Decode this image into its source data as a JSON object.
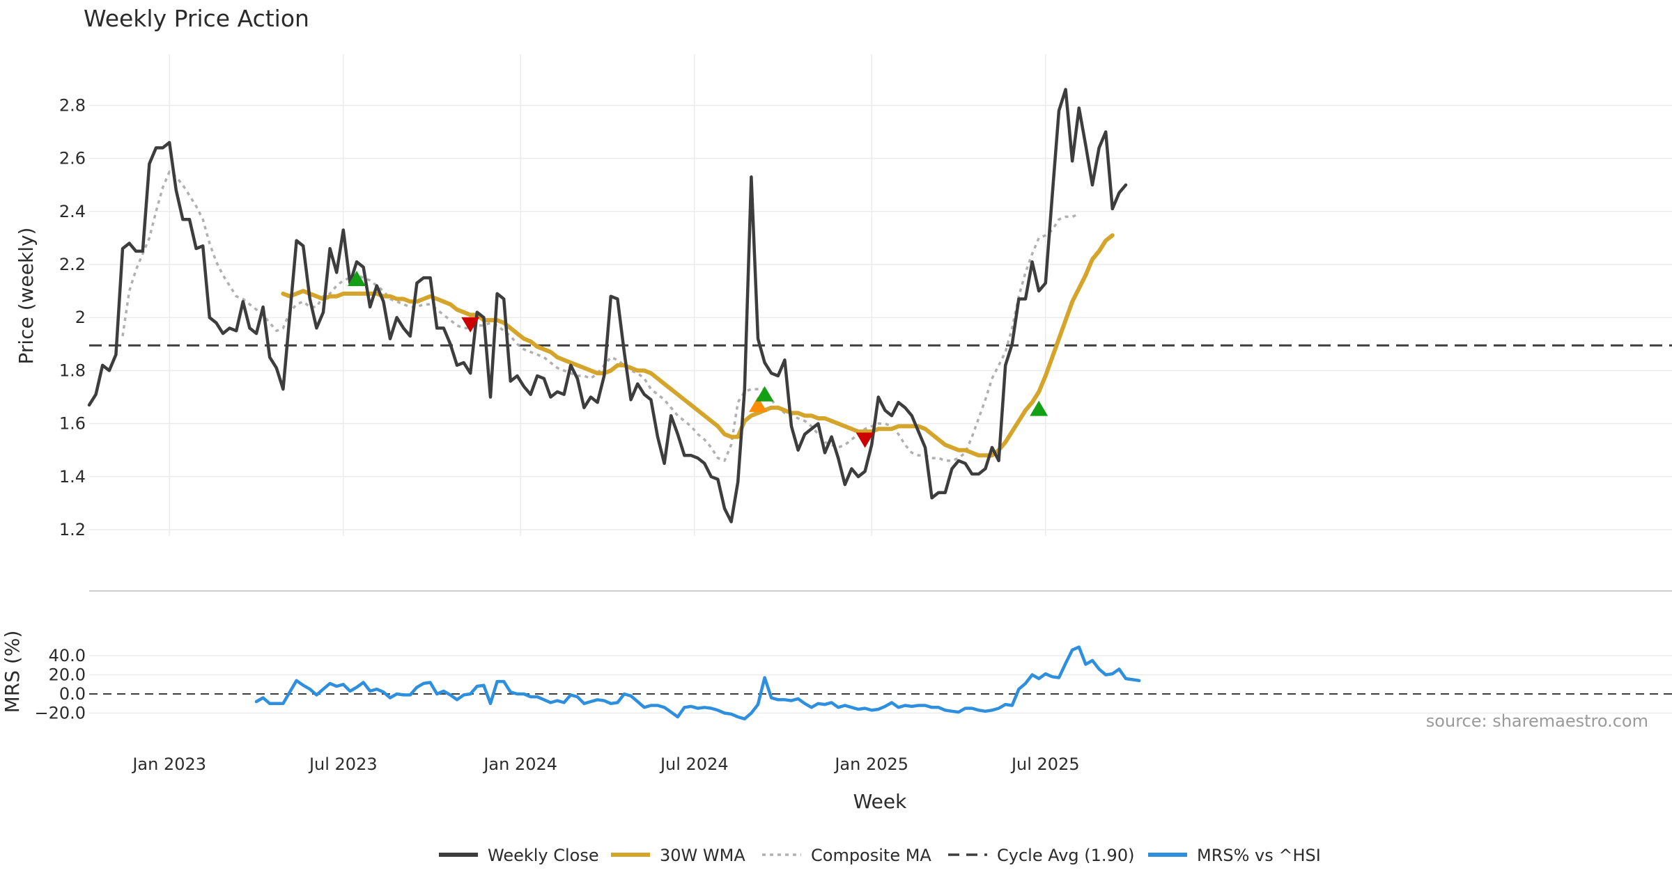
{
  "chart_data": [
    {
      "type": "line",
      "title": "Weekly Price Action",
      "xlabel": "",
      "ylabel": "Price (weekly)",
      "ylim": [
        1.15,
        2.97
      ],
      "yticks": [
        1.2,
        1.4,
        1.6,
        1.8,
        2,
        2.2,
        2.4,
        2.6,
        2.8
      ],
      "ytick_labels": [
        "1.2",
        "1.4",
        "1.6",
        "1.8",
        "2",
        "2.2",
        "2.4",
        "2.6",
        "2.8"
      ],
      "grid": true,
      "x_start": "2022-10-10",
      "x_step_weeks": 1,
      "cycle_avg": 1.895,
      "series": [
        {
          "name": "Weekly Close",
          "color": "#3d3d3d",
          "start_index": 0,
          "values": [
            1.67,
            1.71,
            1.82,
            1.8,
            1.86,
            2.26,
            2.28,
            2.25,
            2.25,
            2.58,
            2.64,
            2.64,
            2.66,
            2.48,
            2.37,
            2.37,
            2.26,
            2.27,
            2.0,
            1.98,
            1.94,
            1.96,
            1.95,
            2.06,
            1.96,
            1.94,
            2.04,
            1.85,
            1.81,
            1.73,
            2.01,
            2.29,
            2.27,
            2.07,
            1.96,
            2.02,
            2.26,
            2.17,
            2.33,
            2.13,
            2.21,
            2.19,
            2.04,
            2.12,
            2.06,
            1.92,
            2.0,
            1.96,
            1.93,
            2.13,
            2.15,
            2.15,
            1.96,
            1.96,
            1.9,
            1.82,
            1.83,
            1.79,
            2.02,
            2.0,
            1.7,
            2.09,
            2.07,
            1.76,
            1.78,
            1.74,
            1.71,
            1.78,
            1.77,
            1.7,
            1.72,
            1.71,
            1.82,
            1.77,
            1.66,
            1.7,
            1.68,
            1.78,
            2.08,
            2.07,
            1.87,
            1.69,
            1.75,
            1.71,
            1.69,
            1.55,
            1.45,
            1.63,
            1.56,
            1.48,
            1.48,
            1.47,
            1.45,
            1.4,
            1.39,
            1.28,
            1.23,
            1.38,
            1.73,
            2.53,
            1.92,
            1.83,
            1.79,
            1.78,
            1.84,
            1.59,
            1.5,
            1.56,
            1.58,
            1.6,
            1.49,
            1.55,
            1.47,
            1.37,
            1.43,
            1.4,
            1.42,
            1.52,
            1.7,
            1.65,
            1.63,
            1.68,
            1.66,
            1.63,
            1.57,
            1.51,
            1.32,
            1.34,
            1.34,
            1.43,
            1.46,
            1.45,
            1.41,
            1.41,
            1.43,
            1.51,
            1.46,
            1.82,
            1.9,
            2.07,
            2.07,
            2.21,
            2.1,
            2.13,
            2.46,
            2.78,
            2.86,
            2.59,
            2.79,
            2.65,
            2.5,
            2.64,
            2.7,
            2.41,
            2.47,
            2.5
          ]
        },
        {
          "name": "30W WMA",
          "color": "#d4a52a",
          "start_index": 29,
          "values": [
            2.09,
            2.08,
            2.09,
            2.1,
            2.09,
            2.08,
            2.07,
            2.08,
            2.08,
            2.09,
            2.09,
            2.09,
            2.09,
            2.09,
            2.09,
            2.08,
            2.08,
            2.07,
            2.07,
            2.06,
            2.06,
            2.07,
            2.08,
            2.07,
            2.06,
            2.05,
            2.03,
            2.02,
            2.01,
            2.01,
            1.99,
            1.99,
            1.99,
            1.98,
            1.96,
            1.94,
            1.92,
            1.91,
            1.89,
            1.88,
            1.87,
            1.85,
            1.84,
            1.83,
            1.82,
            1.81,
            1.8,
            1.79,
            1.79,
            1.8,
            1.82,
            1.82,
            1.81,
            1.8,
            1.8,
            1.79,
            1.77,
            1.75,
            1.73,
            1.71,
            1.69,
            1.67,
            1.65,
            1.63,
            1.61,
            1.59,
            1.56,
            1.55,
            1.55,
            1.61,
            1.63,
            1.64,
            1.65,
            1.66,
            1.66,
            1.65,
            1.64,
            1.64,
            1.63,
            1.63,
            1.62,
            1.62,
            1.61,
            1.6,
            1.59,
            1.58,
            1.57,
            1.57,
            1.57,
            1.58,
            1.58,
            1.58,
            1.59,
            1.59,
            1.59,
            1.59,
            1.58,
            1.56,
            1.54,
            1.52,
            1.51,
            1.5,
            1.5,
            1.49,
            1.48,
            1.48,
            1.48,
            1.5,
            1.53,
            1.57,
            1.61,
            1.65,
            1.68,
            1.72,
            1.78,
            1.85,
            1.92,
            1.99,
            2.06,
            2.11,
            2.16,
            2.22,
            2.25,
            2.29,
            2.31
          ]
        },
        {
          "name": "Composite MA",
          "color": "#b0b0b0",
          "start_index": 5,
          "values": [
            1.93,
            2.1,
            2.18,
            2.24,
            2.3,
            2.4,
            2.49,
            2.55,
            2.53,
            2.5,
            2.46,
            2.42,
            2.37,
            2.28,
            2.21,
            2.16,
            2.12,
            2.08,
            2.07,
            2.05,
            2.03,
            2.01,
            1.98,
            1.95,
            1.96,
            2.02,
            2.05,
            2.06,
            2.04,
            2.04,
            2.08,
            2.09,
            2.12,
            2.14,
            2.15,
            2.16,
            2.15,
            2.14,
            2.12,
            2.1,
            2.07,
            2.06,
            2.05,
            2.04,
            2.04,
            2.05,
            2.05,
            2.03,
            2.01,
            1.99,
            1.97,
            1.96,
            1.96,
            1.97,
            1.97,
            1.98,
            1.97,
            1.95,
            1.93,
            1.9,
            1.88,
            1.87,
            1.86,
            1.85,
            1.83,
            1.81,
            1.8,
            1.79,
            1.78,
            1.78,
            1.77,
            1.79,
            1.82,
            1.85,
            1.84,
            1.82,
            1.8,
            1.79,
            1.77,
            1.73,
            1.71,
            1.69,
            1.66,
            1.63,
            1.61,
            1.59,
            1.56,
            1.54,
            1.51,
            1.47,
            1.46,
            1.52,
            1.68,
            1.72,
            1.73,
            1.73,
            1.73,
            1.69,
            1.66,
            1.64,
            1.63,
            1.62,
            1.61,
            1.59,
            1.56,
            1.53,
            1.52,
            1.51,
            1.52,
            1.54,
            1.56,
            1.58,
            1.59,
            1.6,
            1.6,
            1.59,
            1.56,
            1.52,
            1.49,
            1.48,
            1.48,
            1.47,
            1.47,
            1.46,
            1.46,
            1.47,
            1.49,
            1.55,
            1.62,
            1.69,
            1.77,
            1.82,
            1.87,
            1.96,
            2.08,
            2.17,
            2.24,
            2.3,
            2.31,
            2.33,
            2.37,
            2.38,
            2.38,
            2.39
          ]
        }
      ],
      "markers": [
        {
          "type": "buy",
          "color": "#14a014",
          "index": 40,
          "value": 2.145
        },
        {
          "type": "sell",
          "color": "#cc0000",
          "index": 57,
          "value": 1.975
        },
        {
          "type": "buy-alt",
          "color": "#ff8c00",
          "index": 100,
          "value": 1.67
        },
        {
          "type": "buy",
          "color": "#14a014",
          "index": 101,
          "value": 1.71
        },
        {
          "type": "sell",
          "color": "#cc0000",
          "index": 116,
          "value": 1.54
        },
        {
          "type": "buy",
          "color": "#14a014",
          "index": 142,
          "value": 1.655
        }
      ]
    },
    {
      "type": "line",
      "title": "",
      "xlabel": "Week",
      "ylabel": "MRS (%)",
      "ylim": [
        -24,
        54
      ],
      "yticks": [
        -20,
        0,
        20,
        40
      ],
      "ytick_labels": [
        "−20.0",
        "0.0",
        "20.0",
        "40.0"
      ],
      "zero_line": 0,
      "x_tick_labels": [
        "Jan 2023",
        "Jul 2023",
        "Jan 2024",
        "Jul 2024",
        "Jan 2025",
        "Jul 2025"
      ],
      "x_tick_indices": [
        12,
        38,
        64.5,
        90.5,
        117,
        143
      ],
      "series": [
        {
          "name": "MRS% vs ^HSI",
          "color": "#2e8fdf",
          "start_index": 25,
          "values": [
            -8,
            -4,
            -10,
            -10,
            -10,
            2,
            14,
            9,
            5,
            -1,
            5,
            11,
            8,
            10,
            3,
            7,
            12,
            3,
            5,
            2,
            -4,
            0,
            -1,
            -1,
            7,
            11,
            12,
            0,
            3,
            -1,
            -6,
            -1,
            0,
            8,
            9,
            -10,
            13,
            13,
            2,
            0,
            0,
            -3,
            -3,
            -6,
            -9,
            -7,
            -9,
            -1,
            -3,
            -10,
            -8,
            -6,
            -7,
            -10,
            -9,
            0,
            -2,
            -8,
            -14,
            -12,
            -12,
            -14,
            -19,
            -24,
            -14,
            -13,
            -15,
            -14,
            -15,
            -17,
            -20,
            -21,
            -24,
            -26,
            -20,
            -11,
            17,
            -4,
            -6,
            -6,
            -7,
            -5,
            -10,
            -14,
            -10,
            -11,
            -9,
            -14,
            -12,
            -14,
            -16,
            -15,
            -17,
            -16,
            -13,
            -9,
            -14,
            -12,
            -13,
            -12,
            -12,
            -14,
            -14,
            -17,
            -18,
            -19,
            -15,
            -15,
            -17,
            -18,
            -17,
            -15,
            -11,
            -12,
            5,
            11,
            20,
            16,
            21,
            18,
            17,
            32,
            46,
            49,
            31,
            35,
            26,
            20,
            21,
            26,
            16,
            15,
            14
          ]
        }
      ]
    }
  ],
  "cycle_avg_label": "Cycle Avg (1.90)",
  "source_note": "source: sharemaestro.com",
  "legend": [
    {
      "label": "Weekly Close",
      "style": "solid",
      "color": "#3d3d3d"
    },
    {
      "label": "30W WMA",
      "style": "solid",
      "color": "#d4a52a"
    },
    {
      "label": "Composite MA",
      "style": "dotted",
      "color": "#b0b0b0"
    },
    {
      "label": "Cycle Avg (1.90)",
      "style": "dashed",
      "color": "#3d3d3d"
    },
    {
      "label": "MRS% vs ^HSI",
      "style": "solid",
      "color": "#2e8fdf"
    }
  ]
}
